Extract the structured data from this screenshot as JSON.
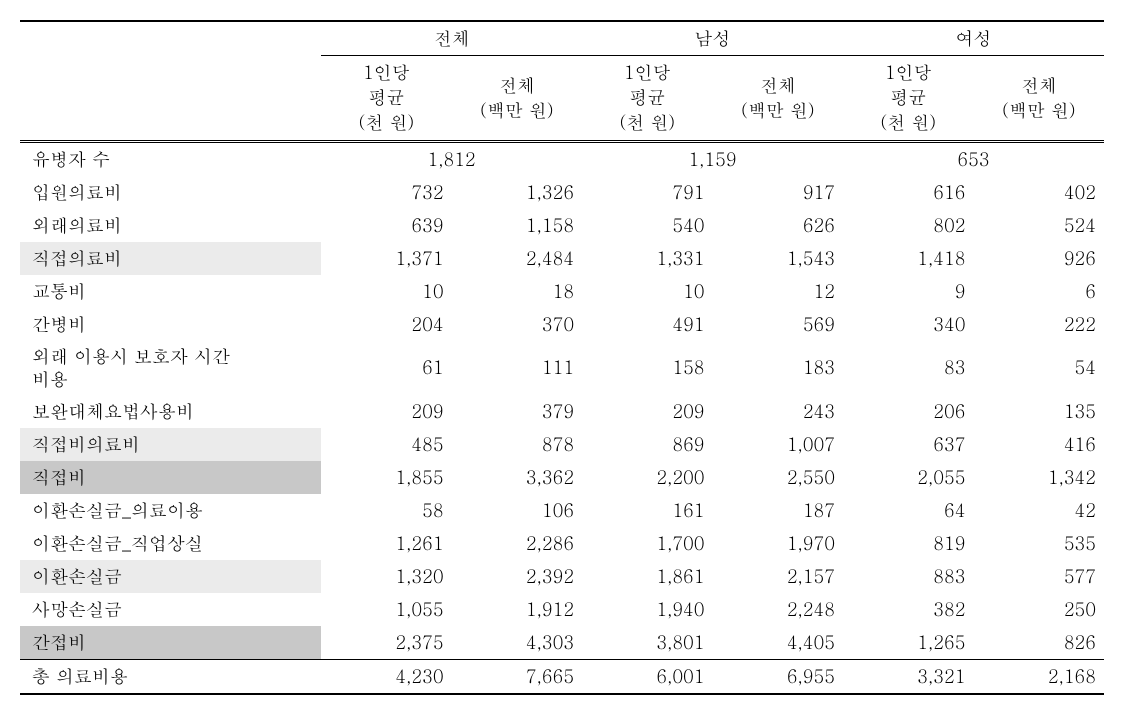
{
  "groups": [
    "전체",
    "남성",
    "여성"
  ],
  "subheaders": {
    "percap": "1인당\n평균\n(천 원)",
    "total": "전체\n(백만 원)"
  },
  "patient_row": {
    "label": "유병자 수",
    "values": [
      "1,812",
      "1,159",
      "653"
    ]
  },
  "rows": [
    {
      "label": "입원의료비",
      "vals": [
        "732",
        "1,326",
        "791",
        "917",
        "616",
        "402"
      ],
      "shade": ""
    },
    {
      "label": "외래의료비",
      "vals": [
        "639",
        "1,158",
        "540",
        "626",
        "802",
        "524"
      ],
      "shade": ""
    },
    {
      "label": "직접의료비",
      "vals": [
        "1,371",
        "2,484",
        "1,331",
        "1,543",
        "1,418",
        "926"
      ],
      "shade": "light"
    },
    {
      "label": "교통비",
      "vals": [
        "10",
        "18",
        "10",
        "12",
        "9",
        "6"
      ],
      "shade": ""
    },
    {
      "label": "간병비",
      "vals": [
        "204",
        "370",
        "491",
        "569",
        "340",
        "222"
      ],
      "shade": ""
    },
    {
      "label": "외래 이용시 보호자 시간\n비용",
      "vals": [
        "61",
        "111",
        "158",
        "183",
        "83",
        "54"
      ],
      "shade": ""
    },
    {
      "label": "보완대체요법사용비",
      "vals": [
        "209",
        "379",
        "209",
        "243",
        "206",
        "135"
      ],
      "shade": ""
    },
    {
      "label": "직접비의료비",
      "vals": [
        "485",
        "878",
        "869",
        "1,007",
        "637",
        "416"
      ],
      "shade": "light"
    },
    {
      "label": "직접비",
      "vals": [
        "1,855",
        "3,362",
        "2,200",
        "2,550",
        "2,055",
        "1,342"
      ],
      "shade": "dark"
    },
    {
      "label": "이환손실금_의료이용",
      "vals": [
        "58",
        "106",
        "161",
        "187",
        "64",
        "42"
      ],
      "shade": ""
    },
    {
      "label": "이환손실금_직업상실",
      "vals": [
        "1,261",
        "2,286",
        "1,700",
        "1,970",
        "819",
        "535"
      ],
      "shade": ""
    },
    {
      "label": "이환손실금",
      "vals": [
        "1,320",
        "2,392",
        "1,861",
        "2,157",
        "883",
        "577"
      ],
      "shade": "light"
    },
    {
      "label": "사망손실금",
      "vals": [
        "1,055",
        "1,912",
        "1,940",
        "2,248",
        "382",
        "250"
      ],
      "shade": ""
    },
    {
      "label": "간접비",
      "vals": [
        "2,375",
        "4,303",
        "3,801",
        "4,405",
        "1,265",
        "826"
      ],
      "shade": "dark"
    },
    {
      "label": "총 의료비용",
      "vals": [
        "4,230",
        "7,665",
        "6,001",
        "6,955",
        "3,321",
        "2,168"
      ],
      "shade": "",
      "final": true
    }
  ],
  "col_widths": {
    "label": 300,
    "data": 130
  }
}
